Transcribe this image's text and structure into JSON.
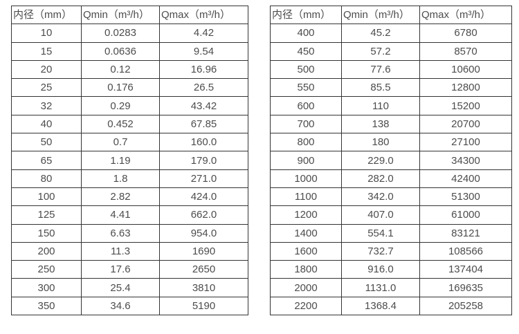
{
  "page": {
    "background": "#ffffff",
    "text_color": "#4c4c4c",
    "border_color": "#333333"
  },
  "tables": [
    {
      "name": "diameter-flow-table-small",
      "headers": [
        "内径（mm）",
        "Qmin（m³/h）",
        "Qmax（m³/h）"
      ],
      "rows": [
        [
          "10",
          "0.0283",
          "4.42"
        ],
        [
          "15",
          "0.0636",
          "9.54"
        ],
        [
          "20",
          "0.12",
          "16.96"
        ],
        [
          "25",
          "0.176",
          "26.5"
        ],
        [
          "32",
          "0.29",
          "43.42"
        ],
        [
          "40",
          "0.452",
          "67.85"
        ],
        [
          "50",
          "0.7",
          "160.0"
        ],
        [
          "65",
          "1.19",
          "179.0"
        ],
        [
          "80",
          "1.8",
          "271.0"
        ],
        [
          "100",
          "2.82",
          "424.0"
        ],
        [
          "125",
          "4.41",
          "662.0"
        ],
        [
          "150",
          "6.63",
          "954.0"
        ],
        [
          "200",
          "11.3",
          "1690"
        ],
        [
          "250",
          "17.6",
          "2650"
        ],
        [
          "300",
          "25.4",
          "3810"
        ],
        [
          "350",
          "34.6",
          "5190"
        ]
      ]
    },
    {
      "name": "diameter-flow-table-large",
      "headers": [
        "内径（mm）",
        "Qmin（m³/h）",
        "Qmax（m³/h）"
      ],
      "rows": [
        [
          "400",
          "45.2",
          "6780"
        ],
        [
          "450",
          "57.2",
          "8570"
        ],
        [
          "500",
          "77.6",
          "10600"
        ],
        [
          "550",
          "85.5",
          "12800"
        ],
        [
          "600",
          "110",
          "15200"
        ],
        [
          "700",
          "138",
          "20700"
        ],
        [
          "800",
          "180",
          "27100"
        ],
        [
          "900",
          "229.0",
          "34300"
        ],
        [
          "1000",
          "282.0",
          "42400"
        ],
        [
          "1100",
          "342.0",
          "51300"
        ],
        [
          "1200",
          "407.0",
          "61000"
        ],
        [
          "1400",
          "554.1",
          "83121"
        ],
        [
          "1600",
          "732.7",
          "108566"
        ],
        [
          "1800",
          "916.0",
          "137404"
        ],
        [
          "2000",
          "1131.0",
          "169635"
        ],
        [
          "2200",
          "1368.4",
          "205258"
        ]
      ]
    }
  ]
}
